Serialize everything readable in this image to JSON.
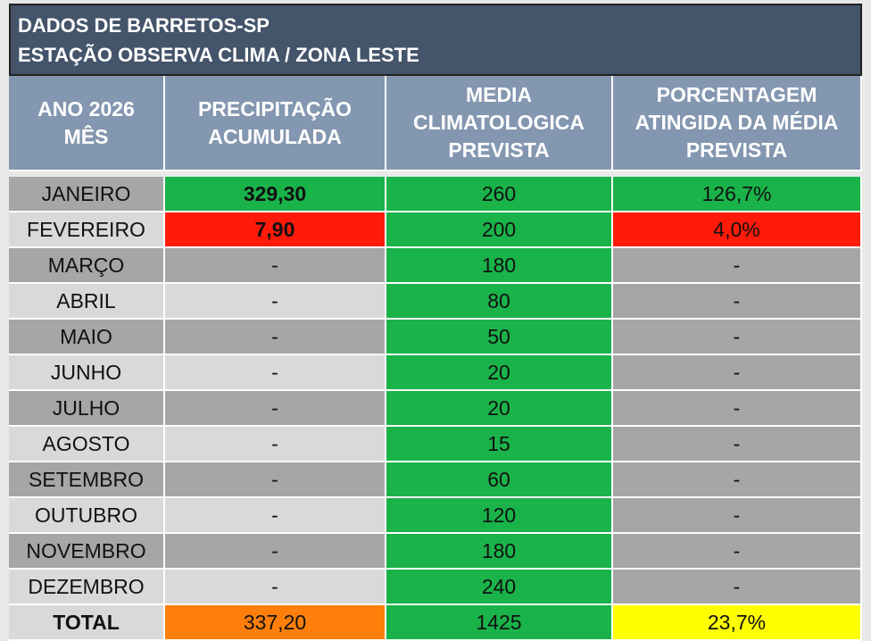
{
  "header": {
    "title_lines": [
      "DADOS DE BARRETOS-SP",
      "ESTAÇÃO OBSERVA CLIMA / ZONA LESTE"
    ]
  },
  "table": {
    "columns": [
      [
        "ANO 2026",
        "MÊS"
      ],
      [
        "PRECIPITAÇÃO",
        "ACUMULADA"
      ],
      [
        "MEDIA",
        "CLIMATOLOGICA",
        "PREVISTA"
      ],
      [
        "PORCENTAGEM",
        "ATINGIDA DA MÉDIA",
        "PREVISTA"
      ]
    ],
    "rows": [
      [
        "JANEIRO",
        "329,30",
        "260",
        "126,7%"
      ],
      [
        "FEVEREIRO",
        "7,90",
        "200",
        "4,0%"
      ],
      [
        "MARÇO",
        "-",
        "180",
        "-"
      ],
      [
        "ABRIL",
        "-",
        "80",
        "-"
      ],
      [
        "MAIO",
        "-",
        "50",
        "-"
      ],
      [
        "JUNHO",
        "-",
        "20",
        "-"
      ],
      [
        "JULHO",
        "-",
        "20",
        "-"
      ],
      [
        "AGOSTO",
        "-",
        "15",
        "-"
      ],
      [
        "SETEMBRO",
        "-",
        "60",
        "-"
      ],
      [
        "OUTUBRO",
        "-",
        "120",
        "-"
      ],
      [
        "NOVEMBRO",
        "-",
        "180",
        "-"
      ],
      [
        "DEZEMBRO",
        "-",
        "240",
        "-"
      ]
    ],
    "total": [
      "TOTAL",
      "337,20",
      "1425",
      "23,7%"
    ]
  }
}
